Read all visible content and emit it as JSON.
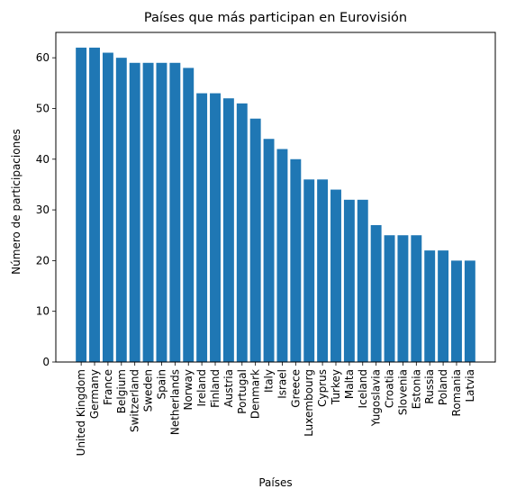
{
  "chart_data": {
    "type": "bar",
    "title": "Países que más participan en Eurovisión",
    "xlabel": "Países",
    "ylabel": "Número de participaciones",
    "ylim": [
      0,
      65
    ],
    "yticks": [
      0,
      10,
      20,
      30,
      40,
      50,
      60
    ],
    "grid": false,
    "bar_color": "#1f77b4",
    "categories": [
      "United Kingdom",
      "Germany",
      "France",
      "Belgium",
      "Switzerland",
      "Sweden",
      "Spain",
      "Netherlands",
      "Norway",
      "Ireland",
      "Finland",
      "Austria",
      "Portugal",
      "Denmark",
      "Italy",
      "Israel",
      "Greece",
      "Luxembourg",
      "Cyprus",
      "Turkey",
      "Malta",
      "Iceland",
      "Yugoslavia",
      "Croatia",
      "Slovenia",
      "Estonia",
      "Russia",
      "Poland",
      "Romania",
      "Latvia"
    ],
    "values": [
      62,
      62,
      61,
      60,
      59,
      59,
      59,
      59,
      58,
      53,
      53,
      52,
      51,
      48,
      44,
      42,
      40,
      36,
      36,
      34,
      32,
      32,
      27,
      25,
      25,
      25,
      22,
      22,
      20,
      20
    ]
  }
}
